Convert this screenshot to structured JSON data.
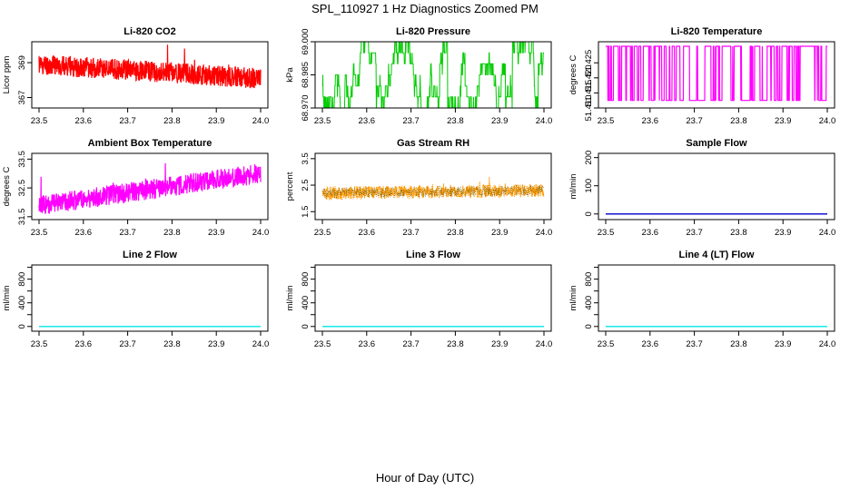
{
  "main_title": "SPL_110927  1 Hz Diagnostics Zoomed PM",
  "x_axis_label": "Hour of Day (UTC)",
  "chart_data": [
    {
      "type": "line",
      "title": "Li-820 CO2",
      "ylabel": "Licor ppm",
      "xlim": [
        23.5,
        24.0
      ],
      "ylim": [
        366.4,
        370.2
      ],
      "x_ticks": [
        "23.5",
        "23.6",
        "23.7",
        "23.8",
        "23.9",
        "24.0"
      ],
      "y_ticks": [
        367,
        369
      ],
      "y_tick_labels": [
        "367",
        "369"
      ],
      "color": "#ff0000",
      "trend": [
        368.9,
        368.1
      ],
      "noise": 0.6,
      "style": "noise",
      "seed": 11
    },
    {
      "type": "line",
      "title": "Li-820 Pressure",
      "ylabel": "kPa",
      "xlim": [
        23.5,
        24.0
      ],
      "ylim": [
        68.97,
        69.0
      ],
      "x_ticks": [
        "23.5",
        "23.6",
        "23.7",
        "23.8",
        "23.9",
        "24.0"
      ],
      "y_ticks": [
        68.97,
        68.985,
        69.0
      ],
      "y_tick_labels": [
        "68.970",
        "68.985",
        "69.000"
      ],
      "color": "#00cc00",
      "levels": [
        68.97,
        68.975,
        68.98,
        68.985,
        68.99,
        68.995,
        69.0
      ],
      "style": "quantized",
      "seed": 22
    },
    {
      "type": "line",
      "title": "Li-820 Temperature",
      "ylabel": "degrees C",
      "xlim": [
        23.5,
        24.0
      ],
      "ylim": [
        51.41,
        51.432
      ],
      "x_ticks": [
        "23.5",
        "23.6",
        "23.7",
        "23.8",
        "23.9",
        "24.0"
      ],
      "y_ticks": [
        51.41,
        51.415,
        51.42,
        51.425
      ],
      "y_tick_labels": [
        "51.410",
        "51.415",
        "51.420",
        "51.425"
      ],
      "color": "#ff00ff",
      "levels": [
        51.4125,
        51.4305
      ],
      "style": "binary",
      "seed": 33
    },
    {
      "type": "line",
      "title": "Ambient Box Temperature",
      "ylabel": "degrees C",
      "xlim": [
        23.5,
        24.0
      ],
      "ylim": [
        31.4,
        33.7
      ],
      "x_ticks": [
        "23.5",
        "23.6",
        "23.7",
        "23.8",
        "23.9",
        "24.0"
      ],
      "y_ticks": [
        31.5,
        32.5,
        33.5
      ],
      "y_tick_labels": [
        "31.5",
        "32.5",
        "33.5"
      ],
      "color": "#ff00ff",
      "trend": [
        31.9,
        33.0
      ],
      "noise": 0.35,
      "style": "noise",
      "seed": 44
    },
    {
      "type": "line",
      "title": "Gas Stream RH",
      "ylabel": "percent",
      "xlim": [
        23.5,
        24.0
      ],
      "ylim": [
        1.2,
        3.7
      ],
      "x_ticks": [
        "23.5",
        "23.6",
        "23.7",
        "23.8",
        "23.9",
        "24.0"
      ],
      "y_ticks": [
        1.5,
        2.5,
        3.5
      ],
      "y_tick_labels": [
        "1.5",
        "2.5",
        "3.5"
      ],
      "color": "#ff9900",
      "dot_color": "#444400",
      "trend": [
        2.2,
        2.3
      ],
      "noise": 0.25,
      "style": "dotted",
      "seed": 55
    },
    {
      "type": "line",
      "title": "Sample Flow",
      "ylabel": "ml/min",
      "xlim": [
        23.5,
        24.0
      ],
      "ylim": [
        -20,
        215
      ],
      "x_ticks": [
        "23.5",
        "23.6",
        "23.7",
        "23.8",
        "23.9",
        "24.0"
      ],
      "y_ticks": [
        0,
        100,
        200
      ],
      "y_tick_labels": [
        "0",
        "100",
        "200"
      ],
      "color": "#0000cc",
      "flat": 0,
      "style": "flat",
      "seed": 66
    },
    {
      "type": "line",
      "title": "Line 2 Flow",
      "ylabel": "ml/min",
      "xlim": [
        23.5,
        24.0
      ],
      "ylim": [
        -80,
        1040
      ],
      "x_ticks": [
        "23.5",
        "23.6",
        "23.7",
        "23.8",
        "23.9",
        "24.0"
      ],
      "y_ticks": [
        0,
        200,
        400,
        600,
        800,
        1000
      ],
      "y_tick_labels": [
        "0",
        "",
        "400",
        "",
        "800",
        ""
      ],
      "color": "#00e5e5",
      "flat": 0,
      "style": "flat",
      "seed": 77
    },
    {
      "type": "line",
      "title": "Line 3 Flow",
      "ylabel": "ml/min",
      "xlim": [
        23.5,
        24.0
      ],
      "ylim": [
        -80,
        1040
      ],
      "x_ticks": [
        "23.5",
        "23.6",
        "23.7",
        "23.8",
        "23.9",
        "24.0"
      ],
      "y_ticks": [
        0,
        200,
        400,
        600,
        800,
        1000
      ],
      "y_tick_labels": [
        "0",
        "",
        "400",
        "",
        "800",
        ""
      ],
      "color": "#00e5e5",
      "flat": 0,
      "style": "flat",
      "seed": 88
    },
    {
      "type": "line",
      "title": "Line 4 (LT) Flow",
      "ylabel": "ml/min",
      "xlim": [
        23.5,
        24.0
      ],
      "ylim": [
        -80,
        1040
      ],
      "x_ticks": [
        "23.5",
        "23.6",
        "23.7",
        "23.8",
        "23.9",
        "24.0"
      ],
      "y_ticks": [
        0,
        200,
        400,
        600,
        800,
        1000
      ],
      "y_tick_labels": [
        "0",
        "",
        "400",
        "",
        "800",
        ""
      ],
      "color": "#00e5e5",
      "flat": 0,
      "style": "flat",
      "seed": 99
    }
  ]
}
